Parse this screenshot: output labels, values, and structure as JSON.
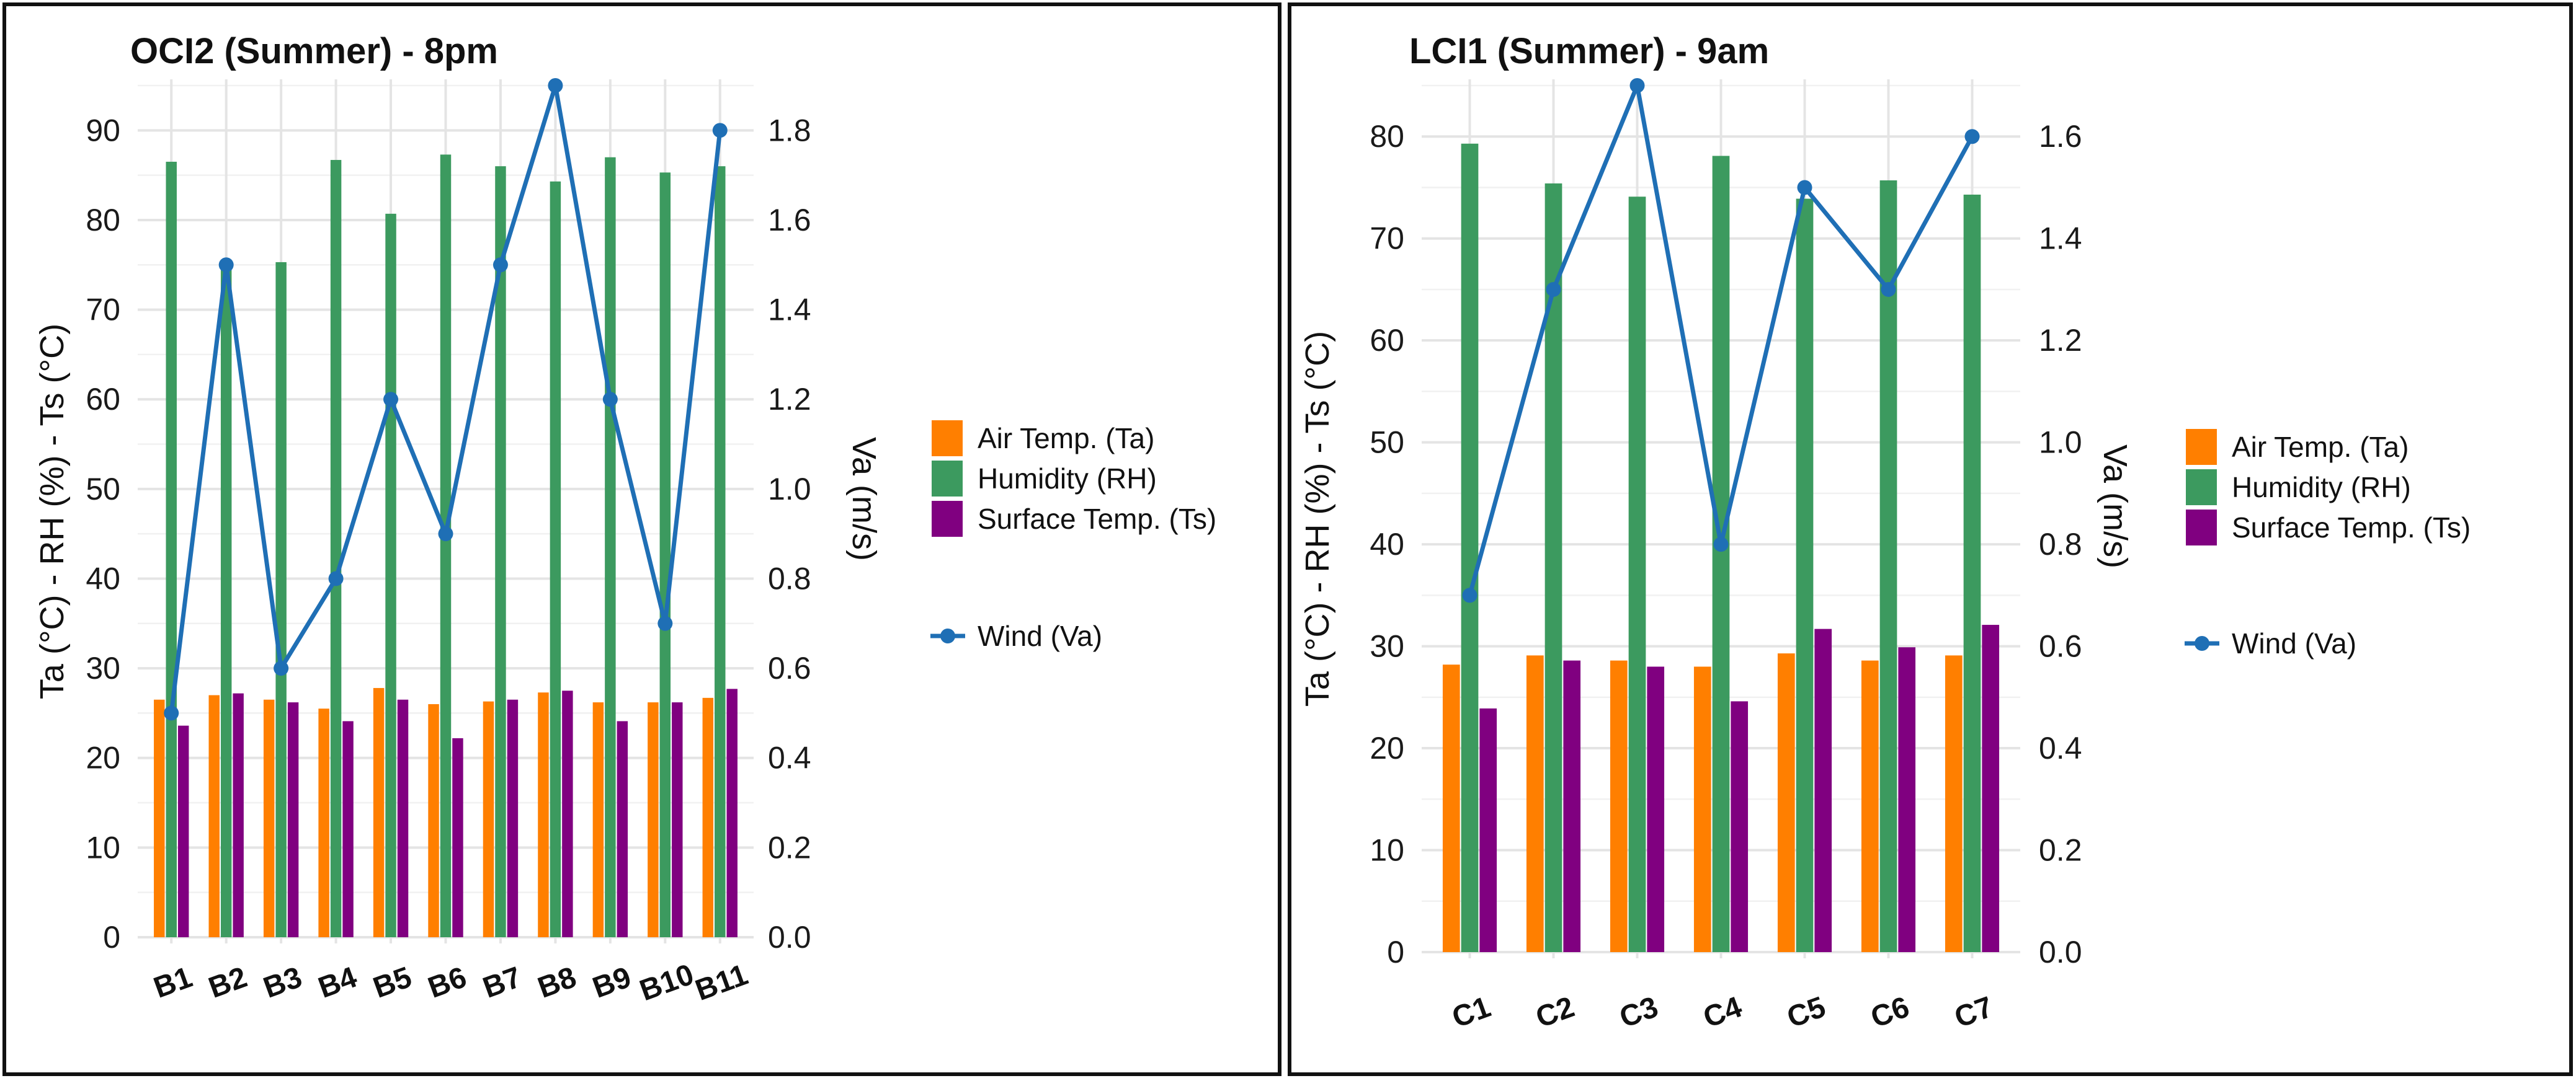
{
  "colors": {
    "ta": "#FF7F00",
    "rh": "#3C9A5F",
    "ts": "#800080",
    "va": "#1F6FB5"
  },
  "legend": {
    "ta": "Air Temp. (Ta)",
    "rh": "Humidity (RH)",
    "ts": "Surface Temp. (Ts)",
    "va": "Wind (Va)"
  },
  "chart_data": [
    {
      "type": "bar",
      "title": "OCI2 (Summer) - 8pm",
      "ylabel": "Ta (°C) - RH (%) - Ts (°C)",
      "y2label": "Va (m/s)",
      "ylim": [
        0,
        95
      ],
      "yticks": [
        0,
        10,
        20,
        30,
        40,
        50,
        60,
        70,
        80,
        90
      ],
      "y2lim": [
        0,
        1.9
      ],
      "y2ticks": [
        "0.0",
        "0.2",
        "0.4",
        "0.6",
        "0.8",
        "1.0",
        "1.2",
        "1.4",
        "1.6",
        "1.8"
      ],
      "categories": [
        "B1",
        "B2",
        "B3",
        "B4",
        "B5",
        "B6",
        "B7",
        "B8",
        "B9",
        "B10",
        "B11"
      ],
      "series": [
        {
          "name": "Air Temp. (Ta)",
          "key": "ta",
          "values": [
            26.5,
            27.0,
            26.5,
            25.5,
            27.8,
            26.0,
            26.3,
            27.3,
            26.2,
            26.2,
            26.7
          ]
        },
        {
          "name": "Humidity (RH)",
          "key": "rh",
          "values": [
            86.5,
            75.5,
            75.3,
            86.7,
            80.7,
            87.3,
            86.0,
            84.3,
            87.0,
            85.3,
            86.0
          ]
        },
        {
          "name": "Surface Temp. (Ts)",
          "key": "ts",
          "values": [
            23.6,
            27.2,
            26.2,
            24.1,
            26.5,
            22.2,
            26.5,
            27.5,
            24.1,
            26.2,
            27.7
          ]
        }
      ],
      "line": {
        "name": "Wind (Va)",
        "key": "va",
        "axis": "secondary",
        "values": [
          0.5,
          1.5,
          0.6,
          0.8,
          1.2,
          0.9,
          1.5,
          1.9,
          1.2,
          0.7,
          1.8
        ]
      }
    },
    {
      "type": "bar",
      "title": "LCI1 (Summer) - 9am",
      "ylabel": "Ta (°C) - RH (%) - Ts (°C)",
      "y2label": "Va (m/s)",
      "ylim": [
        0,
        85
      ],
      "yticks": [
        0,
        10,
        20,
        30,
        40,
        50,
        60,
        70,
        80
      ],
      "y2lim": [
        0,
        1.7
      ],
      "y2ticks": [
        "0.0",
        "0.2",
        "0.4",
        "0.6",
        "0.8",
        "1.0",
        "1.2",
        "1.4",
        "1.6"
      ],
      "categories": [
        "C1",
        "C2",
        "C3",
        "C4",
        "C5",
        "C6",
        "C7"
      ],
      "series": [
        {
          "name": "Air Temp. (Ta)",
          "key": "ta",
          "values": [
            28.2,
            29.1,
            28.6,
            28.0,
            29.3,
            28.6,
            29.1
          ]
        },
        {
          "name": "Humidity (RH)",
          "key": "rh",
          "values": [
            79.3,
            75.4,
            74.1,
            78.1,
            73.9,
            75.7,
            74.3
          ]
        },
        {
          "name": "Surface Temp. (Ts)",
          "key": "ts",
          "values": [
            23.9,
            28.6,
            28.0,
            24.6,
            31.7,
            29.9,
            32.1
          ]
        }
      ],
      "line": {
        "name": "Wind (Va)",
        "key": "va",
        "axis": "secondary",
        "values": [
          0.7,
          1.3,
          1.7,
          0.8,
          1.5,
          1.3,
          1.6
        ]
      }
    }
  ]
}
